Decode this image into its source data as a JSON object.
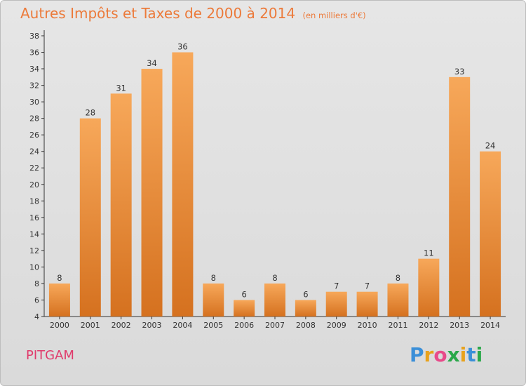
{
  "title": "Autres Impôts et Taxes de 2000 à 2014",
  "subtitle": "(en milliers d'€)",
  "commune": "PITGAM",
  "logo": {
    "letters": [
      "P",
      "r",
      "o",
      "x",
      "i",
      "t",
      "i"
    ],
    "colors": [
      "#3a8fd8",
      "#e8a21c",
      "#e84a8a",
      "#2aa84a",
      "#e8a21c",
      "#3a8fd8",
      "#2aa84a"
    ]
  },
  "colors": {
    "bar_light": "#f7a85a",
    "bar_dark": "#d5711f",
    "title": "#ec7a3a",
    "commune": "#e03a6b"
  },
  "chart_data": {
    "type": "bar",
    "categories": [
      "2000",
      "2001",
      "2002",
      "2003",
      "2004",
      "2005",
      "2006",
      "2007",
      "2008",
      "2009",
      "2010",
      "2011",
      "2012",
      "2013",
      "2014"
    ],
    "values": [
      8,
      28,
      31,
      34,
      36,
      8,
      6,
      8,
      6,
      7,
      7,
      8,
      11,
      33,
      24
    ],
    "ylim": [
      4,
      38
    ],
    "yticks": [
      4,
      6,
      8,
      10,
      12,
      14,
      16,
      18,
      20,
      22,
      24,
      26,
      28,
      30,
      32,
      34,
      36,
      38
    ],
    "grid": false,
    "data_labels": true
  }
}
